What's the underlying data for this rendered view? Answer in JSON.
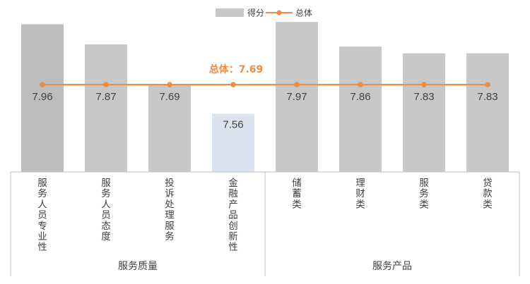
{
  "chart_data": {
    "type": "bar",
    "legend": {
      "bar_label": "得分",
      "line_label": "总体",
      "placement": "top-center"
    },
    "categories": [
      "服务人员专业性",
      "服务人员态度",
      "投诉处理服务",
      "金融产品创新性",
      "储蓄类",
      "理财类",
      "服务类",
      "贷款类"
    ],
    "groups": [
      {
        "label": "服务质量",
        "count": 4
      },
      {
        "label": "服务产品",
        "count": 4
      }
    ],
    "series": [
      {
        "name": "得分",
        "type": "bar",
        "values": [
          7.96,
          7.87,
          7.69,
          7.56,
          7.97,
          7.86,
          7.83,
          7.83
        ]
      },
      {
        "name": "总体",
        "type": "line",
        "values": [
          7.69,
          7.69,
          7.69,
          7.69,
          7.69,
          7.69,
          7.69,
          7.69
        ]
      }
    ],
    "data_labels": [
      "7.96",
      "7.87",
      "7.69",
      "7.56",
      "7.97",
      "7.86",
      "7.83",
      "7.83"
    ],
    "overall_annotation": "总体：7.69",
    "highlight_index": 3,
    "ylim": [
      7.3,
      7.98
    ],
    "grid": false,
    "colors": {
      "bar": "#c8c8c8",
      "bar_dark": "#bdbdbd",
      "bar_highlight": "#dbe3f1",
      "line": "#f08c41",
      "annotation": "#f08c41",
      "text": "#404040",
      "axis": "#bfbfbf"
    }
  }
}
